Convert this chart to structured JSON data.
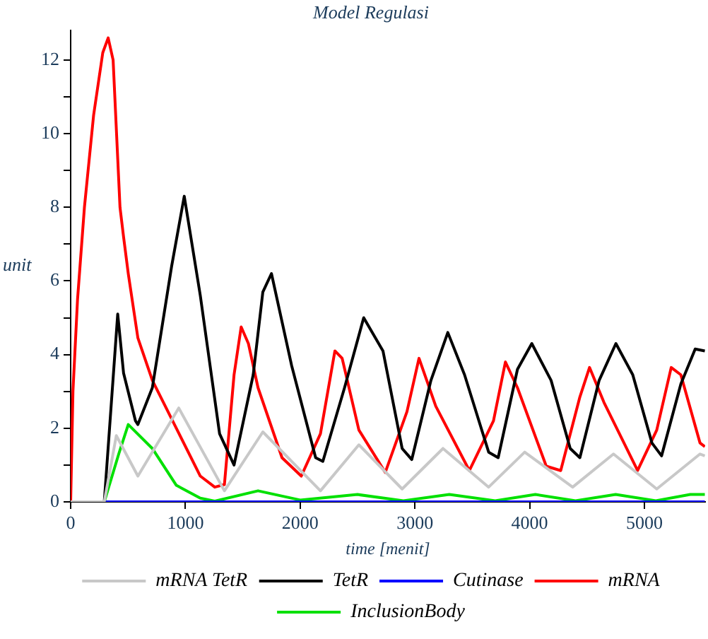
{
  "chart_data": {
    "type": "line",
    "title": "Model Regulasi",
    "xlabel": "time [menit]",
    "ylabel": "unit",
    "xlim": [
      0,
      5530
    ],
    "xticks": [
      0,
      1000,
      2000,
      3000,
      4000,
      5000
    ],
    "ylim": [
      0,
      12.8
    ],
    "yticks": [
      0,
      {
        "value": 1,
        "label": null
      },
      2,
      {
        "value": 3,
        "label": null
      },
      4,
      {
        "value": 5,
        "label": null
      },
      6,
      {
        "value": 7,
        "label": null
      },
      8,
      {
        "value": 9,
        "label": null
      },
      10,
      {
        "value": 11,
        "label": null
      },
      12
    ],
    "grid": false,
    "legend": "bottom",
    "marker": "none",
    "line_style": "solid",
    "series": [
      {
        "name": "mRNA TetR",
        "color": "#c8c8c8",
        "x": [
          0,
          293,
          398,
          586,
          942,
          1340,
          1675,
          2177,
          2512,
          2889,
          3245,
          3643,
          3957,
          4375,
          4731,
          5108,
          5485,
          5527
        ],
        "values": [
          0,
          0,
          1.8,
          0.7,
          2.55,
          0.3,
          1.9,
          0.3,
          1.55,
          0.35,
          1.45,
          0.4,
          1.35,
          0.4,
          1.3,
          0.35,
          1.3,
          1.25
        ]
      },
      {
        "name": "TetR",
        "color": "#000000",
        "x": [
          0,
          293,
          410,
          461,
          565,
          586,
          712,
          880,
          990,
          1130,
          1298,
          1424,
          1591,
          1675,
          1750,
          1926,
          2135,
          2198,
          2387,
          2554,
          2722,
          2889,
          2973,
          3140,
          3287,
          3433,
          3643,
          3726,
          3894,
          4019,
          4187,
          4354,
          4438,
          4606,
          4752,
          4899,
          5066,
          5150,
          5318,
          5443,
          5527
        ],
        "values": [
          0,
          0,
          5.1,
          3.5,
          2.2,
          2.1,
          3.1,
          6.4,
          8.3,
          5.6,
          1.85,
          1.0,
          3.45,
          5.7,
          6.2,
          3.7,
          1.2,
          1.1,
          3.1,
          5.0,
          4.1,
          1.45,
          1.15,
          3.3,
          4.6,
          3.45,
          1.35,
          1.2,
          3.6,
          4.3,
          3.3,
          1.45,
          1.2,
          3.3,
          4.3,
          3.45,
          1.6,
          1.25,
          3.2,
          4.15,
          4.1
        ]
      },
      {
        "name": "Cutinase",
        "color": "#0000ff",
        "x": [
          0,
          5527
        ],
        "values": [
          0,
          0
        ]
      },
      {
        "name": "mRNA",
        "color": "#ff0000",
        "x": [
          0,
          20,
          60,
          120,
          200,
          280,
          327,
          370,
          400,
          430,
          461,
          502,
          586,
          712,
          921,
          1130,
          1256,
          1340,
          1424,
          1486,
          1549,
          1633,
          1842,
          2010,
          2177,
          2303,
          2366,
          2512,
          2742,
          2931,
          3036,
          3182,
          3475,
          3685,
          3789,
          3894,
          4145,
          4271,
          4438,
          4522,
          4648,
          4941,
          5108,
          5234,
          5318,
          5485,
          5527
        ],
        "values": [
          0,
          3,
          5.5,
          8,
          10.5,
          12.2,
          12.6,
          12,
          10,
          8,
          7.2,
          6.2,
          4.45,
          3.3,
          2.0,
          0.7,
          0.4,
          0.47,
          3.45,
          4.75,
          4.3,
          3.1,
          1.2,
          0.7,
          1.85,
          4.1,
          3.9,
          1.95,
          0.8,
          2.45,
          3.9,
          2.6,
          0.85,
          2.2,
          3.8,
          3.1,
          0.97,
          0.85,
          2.85,
          3.65,
          2.7,
          0.85,
          1.95,
          3.65,
          3.45,
          1.6,
          1.5
        ]
      },
      {
        "name": "InclusionBody",
        "color": "#00e000",
        "x": [
          0,
          293,
          419,
          502,
          712,
          921,
          1130,
          1256,
          1633,
          2000,
          2500,
          2900,
          3300,
          3700,
          4050,
          4400,
          4750,
          5100,
          5400,
          5527
        ],
        "values": [
          0,
          0,
          1.3,
          2.1,
          1.45,
          0.45,
          0.1,
          0.02,
          0.3,
          0.05,
          0.2,
          0.03,
          0.2,
          0.03,
          0.2,
          0.03,
          0.2,
          0.03,
          0.2,
          0.2
        ]
      }
    ]
  }
}
